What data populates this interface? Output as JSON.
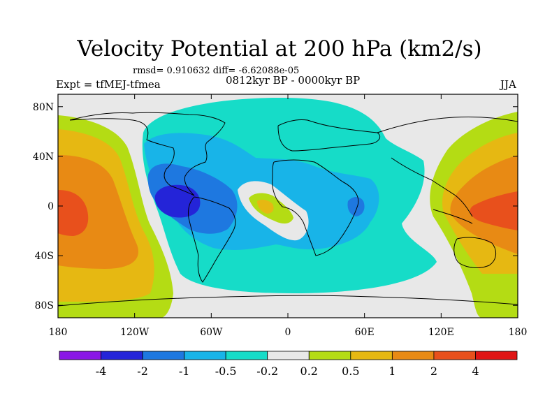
{
  "title": "Velocity Potential at 200 hPa (km2/s)",
  "stats_line": "rmsd= 0.910632 diff= -6.62088e-05",
  "experiment": "Expt = tfMEJ-tfmea",
  "period": "0812kyr BP - 0000kyr BP",
  "season": "JJA",
  "lat_ticks": [
    {
      "label": "80N",
      "value": 80
    },
    {
      "label": "40N",
      "value": 40
    },
    {
      "label": "0",
      "value": 0
    },
    {
      "label": "40S",
      "value": -40
    },
    {
      "label": "80S",
      "value": -80
    }
  ],
  "lon_ticks": [
    {
      "label": "180",
      "value": -180
    },
    {
      "label": "120W",
      "value": -120
    },
    {
      "label": "60W",
      "value": -60
    },
    {
      "label": "0",
      "value": 0
    },
    {
      "label": "60E",
      "value": 60
    },
    {
      "label": "120E",
      "value": 120
    },
    {
      "label": "180",
      "value": 180
    }
  ],
  "colorbar": {
    "colors": [
      "#8a17e6",
      "#2424d8",
      "#1e78e0",
      "#18b4e8",
      "#16dcc8",
      "#e8e8e8",
      "#b4dc14",
      "#e6b812",
      "#e88a14",
      "#e8501c",
      "#e01414"
    ],
    "labels": [
      {
        "text": "-4",
        "boundary": 1
      },
      {
        "text": "-2",
        "boundary": 2
      },
      {
        "text": "-1",
        "boundary": 3
      },
      {
        "text": "-0.5",
        "boundary": 4
      },
      {
        "text": "-0.2",
        "boundary": 5
      },
      {
        "text": "0.2",
        "boundary": 6
      },
      {
        "text": "0.5",
        "boundary": 7
      },
      {
        "text": "1",
        "boundary": 8
      },
      {
        "text": "2",
        "boundary": 9
      },
      {
        "text": "4",
        "boundary": 10
      }
    ]
  }
}
